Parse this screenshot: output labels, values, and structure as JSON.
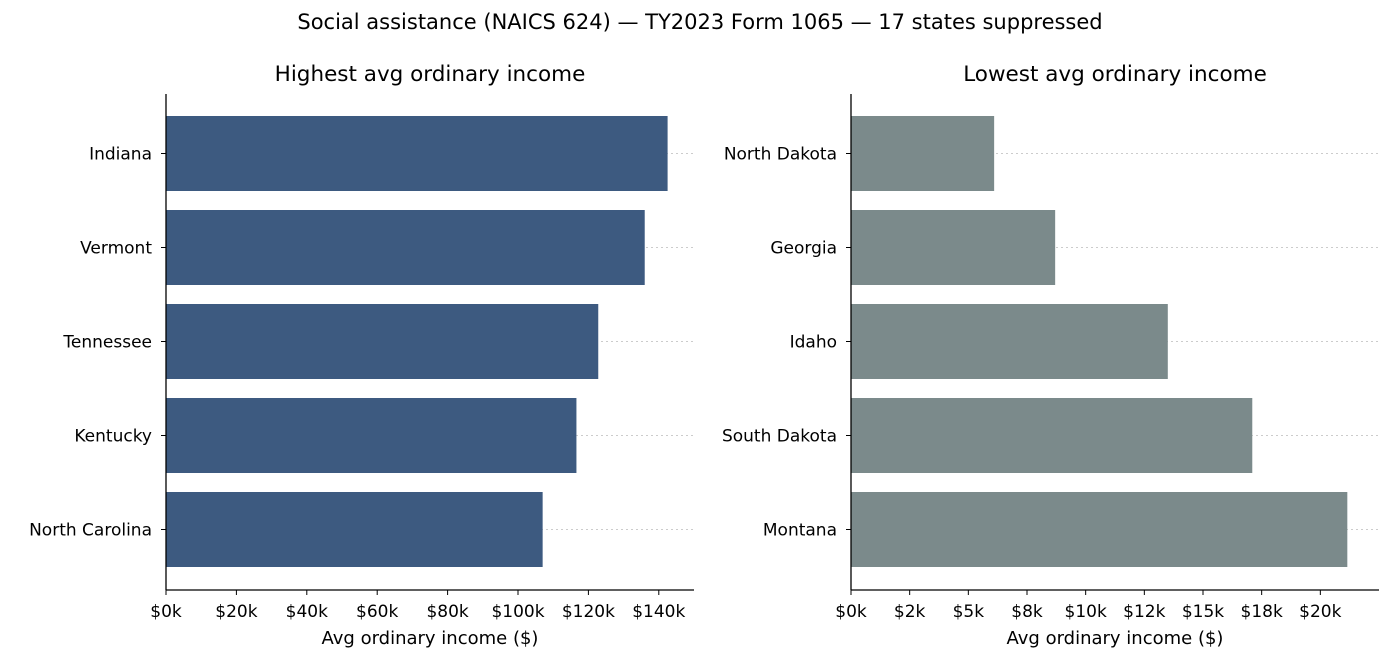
{
  "figure_title": "Social assistance (NAICS 624) — TY2023 Form 1065 — 17 states suppressed",
  "chart_data": [
    {
      "type": "bar",
      "orientation": "horizontal",
      "title": "Highest avg ordinary income",
      "xlabel": "Avg ordinary income ($)",
      "ylabel": "",
      "categories": [
        "Indiana",
        "Vermont",
        "Tennessee",
        "Kentucky",
        "North Carolina"
      ],
      "values": [
        142500,
        136000,
        122800,
        116600,
        107000
      ],
      "xlim": [
        0,
        150000
      ],
      "xticks": [
        0,
        20000,
        40000,
        60000,
        80000,
        100000,
        120000,
        140000
      ],
      "xtick_labels": [
        "$0k",
        "$20k",
        "$40k",
        "$60k",
        "$80k",
        "$100k",
        "$120k",
        "$140k"
      ],
      "color": "#3d5a80",
      "grid": "x dotted"
    },
    {
      "type": "bar",
      "orientation": "horizontal",
      "title": "Lowest avg ordinary income",
      "xlabel": "Avg ordinary income ($)",
      "ylabel": "",
      "categories": [
        "North Dakota",
        "Georgia",
        "Idaho",
        "South Dakota",
        "Montana"
      ],
      "values": [
        6100,
        8700,
        13500,
        17100,
        21150
      ],
      "xlim": [
        0,
        22500
      ],
      "xticks": [
        0,
        2500,
        5000,
        7500,
        10000,
        12500,
        15000,
        17500,
        20000
      ],
      "xtick_labels": [
        "$0k",
        "$2k",
        "$5k",
        "$8k",
        "$10k",
        "$12k",
        "$15k",
        "$18k",
        "$20k"
      ],
      "color": "#7b8a8b",
      "grid": "x dotted"
    }
  ]
}
